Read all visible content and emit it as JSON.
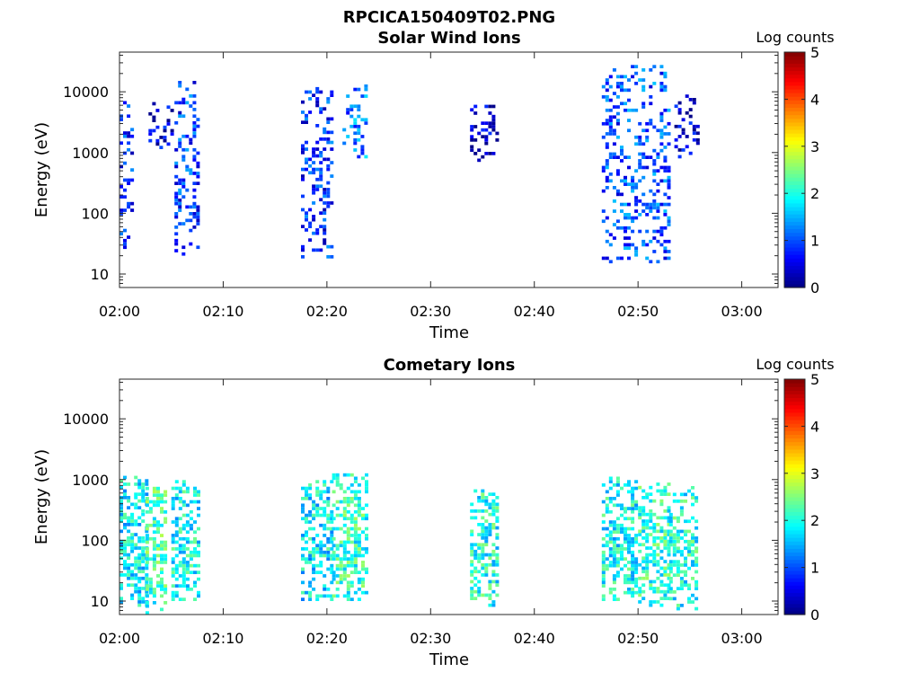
{
  "figure_title": "RPCICA150409T02.PNG",
  "colors": {
    "colormap": [
      "#00007f",
      "#0000ff",
      "#007fff",
      "#00ffff",
      "#7fff7f",
      "#ffff00",
      "#ff7f00",
      "#ff0000",
      "#7f0000"
    ]
  },
  "chart_data": [
    {
      "type": "heatmap",
      "title": "Solar Wind Ions",
      "xlabel": "Time",
      "ylabel": "Energy (eV)",
      "colorbar_label": "Log counts",
      "colorbar_ticks": [
        "0",
        "1",
        "2",
        "3",
        "4",
        "5"
      ],
      "colorbar_range": [
        0,
        5
      ],
      "x_ticks": [
        "02:00",
        "02:10",
        "02:20",
        "02:30",
        "02:40",
        "02:50",
        "03:00"
      ],
      "y_ticks": [
        "10",
        "100",
        "1000",
        "10000"
      ],
      "y_scale": "log",
      "ylim": [
        6,
        45000
      ],
      "xlim_minutes_after_0200": [
        0,
        63.5
      ],
      "grid": false,
      "bursts": [
        {
          "t_start": 0.0,
          "t_end": 1.2,
          "e_low": 20,
          "e_high": 9000,
          "intensity": 0.8
        },
        {
          "t_start": 2.8,
          "t_end": 5.0,
          "e_low": 1000,
          "e_high": 6000,
          "intensity": 0.4
        },
        {
          "t_start": 5.3,
          "t_end": 7.6,
          "e_low": 20,
          "e_high": 14000,
          "intensity": 0.9
        },
        {
          "t_start": 17.5,
          "t_end": 20.5,
          "e_low": 18,
          "e_high": 12000,
          "intensity": 0.8
        },
        {
          "t_start": 21.5,
          "t_end": 23.8,
          "e_low": 800,
          "e_high": 13000,
          "intensity": 1.2
        },
        {
          "t_start": 33.8,
          "t_end": 36.5,
          "e_low": 700,
          "e_high": 6000,
          "intensity": 0.3
        },
        {
          "t_start": 46.5,
          "t_end": 53.0,
          "e_low": 15,
          "e_high": 25000,
          "intensity": 1.0
        },
        {
          "t_start": 53.5,
          "t_end": 55.8,
          "e_low": 800,
          "e_high": 9000,
          "intensity": 0.4
        }
      ]
    },
    {
      "type": "heatmap",
      "title": "Cometary Ions",
      "xlabel": "Time",
      "ylabel": "Energy (eV)",
      "colorbar_label": "Log counts",
      "colorbar_ticks": [
        "0",
        "1",
        "2",
        "3",
        "4",
        "5"
      ],
      "colorbar_range": [
        0,
        5
      ],
      "x_ticks": [
        "02:00",
        "02:10",
        "02:20",
        "02:30",
        "02:40",
        "02:50",
        "03:00"
      ],
      "y_ticks": [
        "10",
        "100",
        "1000",
        "10000"
      ],
      "y_scale": "log",
      "ylim": [
        6,
        45000
      ],
      "xlim_minutes_after_0200": [
        0,
        63.5
      ],
      "grid": false,
      "bursts": [
        {
          "t_start": 0.0,
          "t_end": 2.5,
          "e_low": 8,
          "e_high": 1200,
          "intensity": 1.8
        },
        {
          "t_start": 2.5,
          "t_end": 4.5,
          "e_low": 6,
          "e_high": 700,
          "intensity": 2.2
        },
        {
          "t_start": 5.0,
          "t_end": 7.6,
          "e_low": 10,
          "e_high": 900,
          "intensity": 1.9
        },
        {
          "t_start": 17.5,
          "t_end": 20.5,
          "e_low": 10,
          "e_high": 900,
          "intensity": 1.8
        },
        {
          "t_start": 20.5,
          "t_end": 23.8,
          "e_low": 10,
          "e_high": 1200,
          "intensity": 2.1
        },
        {
          "t_start": 33.8,
          "t_end": 36.5,
          "e_low": 8,
          "e_high": 650,
          "intensity": 2.0
        },
        {
          "t_start": 46.5,
          "t_end": 50.0,
          "e_low": 10,
          "e_high": 1200,
          "intensity": 1.9
        },
        {
          "t_start": 50.0,
          "t_end": 53.0,
          "e_low": 8,
          "e_high": 800,
          "intensity": 2.1
        },
        {
          "t_start": 53.0,
          "t_end": 55.8,
          "e_low": 7,
          "e_high": 700,
          "intensity": 2.0
        }
      ]
    }
  ]
}
